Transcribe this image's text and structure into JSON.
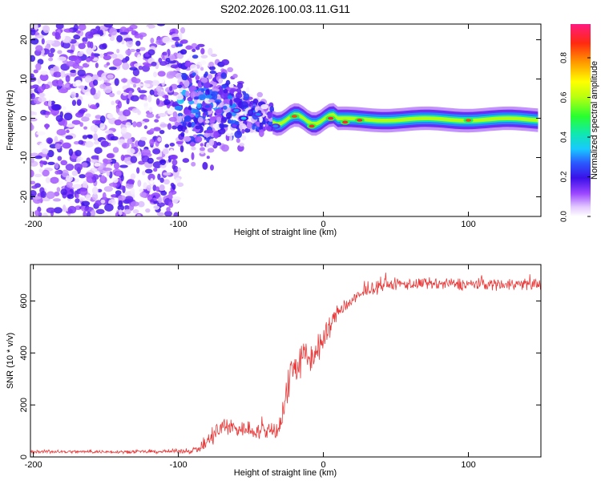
{
  "title": "S202.2026.100.03.11.G11",
  "colors": {
    "snr_line": "#e83a3a",
    "axis": "#000000"
  },
  "chart_data": [
    {
      "type": "heatmap",
      "xlabel": "Height of straight line (km)",
      "ylabel": "Frequency (Hz)",
      "xlim": [
        -202,
        150
      ],
      "ylim": [
        -25,
        24
      ],
      "x_ticks": [
        -200,
        -100,
        0,
        100
      ],
      "y_ticks": [
        -20,
        -10,
        0,
        10,
        20
      ],
      "colorbar": {
        "label": "Normalized spectral amplitude",
        "range": [
          0,
          0.97
        ],
        "ticks": [
          0.0,
          0.2,
          0.4,
          0.6,
          0.8
        ]
      },
      "regions": [
        {
          "x": [
            -202,
            -100
          ],
          "description": "scattered low-amplitude noise across all frequencies",
          "amplitude": 0.2
        },
        {
          "x": [
            -100,
            -35
          ],
          "description": "broad noisy band converging toward 0 Hz",
          "amplitude": 0.35
        },
        {
          "x": [
            -35,
            150
          ],
          "description": "narrow band near 0 Hz",
          "amplitude": 0.6
        }
      ],
      "ridge_peaks": [
        {
          "x": -80,
          "y": 3,
          "amplitude": 0.25
        },
        {
          "x": -60,
          "y": 2,
          "amplitude": 0.3
        },
        {
          "x": -55,
          "y": 0,
          "amplitude": 0.35
        },
        {
          "x": -45,
          "y": 1,
          "amplitude": 0.3
        },
        {
          "x": -33,
          "y": -2,
          "amplitude": 0.3
        },
        {
          "x": -20,
          "y": 0.5,
          "amplitude": 0.85
        },
        {
          "x": -8,
          "y": -2,
          "amplitude": 0.9
        },
        {
          "x": 5,
          "y": 0,
          "amplitude": 0.9
        },
        {
          "x": 15,
          "y": -1,
          "amplitude": 0.9
        },
        {
          "x": 25,
          "y": -0.5,
          "amplitude": 0.9
        },
        {
          "x": 100,
          "y": -0.5,
          "amplitude": 0.85
        }
      ]
    },
    {
      "type": "line",
      "xlabel": "Height of straight line (km)",
      "ylabel": "SNR (10 * v/v)",
      "xlim": [
        -202,
        150
      ],
      "ylim": [
        0,
        740
      ],
      "x_ticks": [
        -200,
        -100,
        0,
        100
      ],
      "y_ticks": [
        0,
        200,
        400,
        600
      ],
      "series": [
        {
          "name": "SNR",
          "x": [
            -202,
            -180,
            -150,
            -120,
            -100,
            -90,
            -85,
            -80,
            -75,
            -70,
            -65,
            -60,
            -50,
            -40,
            -30,
            -25,
            -22,
            -20,
            -15,
            -10,
            -5,
            0,
            5,
            10,
            20,
            30,
            40,
            50,
            60,
            80,
            100,
            120,
            150
          ],
          "values": [
            20,
            20,
            20,
            20,
            22,
            25,
            35,
            55,
            90,
            110,
            115,
            110,
            105,
            95,
            120,
            250,
            350,
            340,
            370,
            380,
            400,
            450,
            510,
            560,
            600,
            640,
            660,
            665,
            665,
            665,
            665,
            665,
            665
          ],
          "noise": [
            8,
            8,
            8,
            8,
            10,
            15,
            20,
            40,
            60,
            50,
            50,
            45,
            40,
            45,
            70,
            90,
            100,
            80,
            90,
            80,
            80,
            70,
            50,
            35,
            35,
            30,
            30,
            30,
            30,
            30,
            30,
            30,
            30
          ]
        }
      ]
    }
  ]
}
